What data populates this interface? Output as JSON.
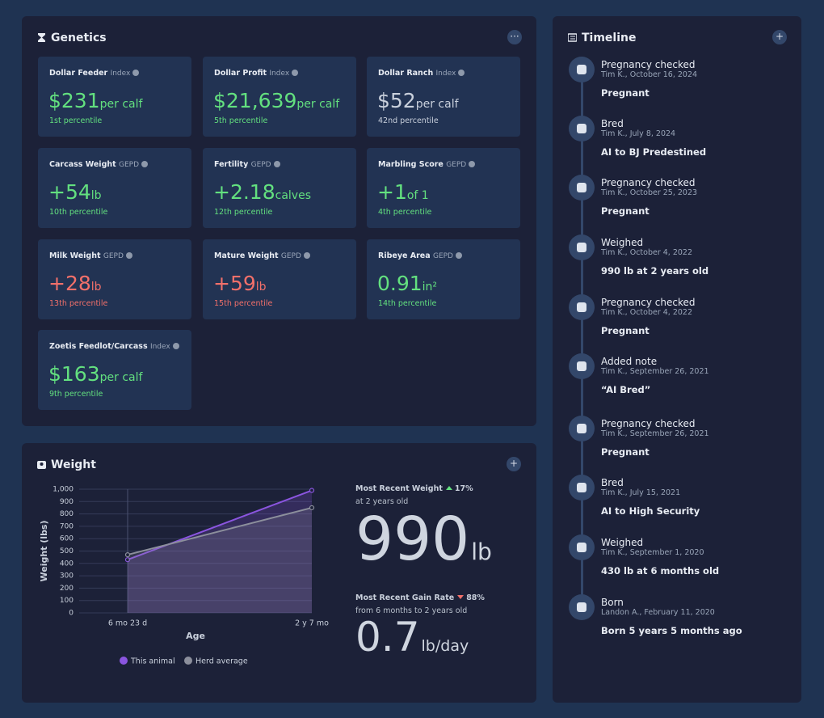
{
  "genetics": {
    "title": "Genetics",
    "cards": [
      {
        "name": "Dollar Feeder",
        "kind": "Index",
        "value": "$231",
        "unit": "per calf",
        "percentile": "1st percentile",
        "color": "#63e07f"
      },
      {
        "name": "Dollar Profit",
        "kind": "Index",
        "value": "$21,639",
        "unit": "per calf",
        "percentile": "5th percentile",
        "color": "#63e07f"
      },
      {
        "name": "Dollar Ranch",
        "kind": "Index",
        "value": "$52",
        "unit": "per calf",
        "percentile": "42nd percentile",
        "color": "#c9d0dc"
      },
      {
        "name": "Carcass Weight",
        "kind": "GEPD",
        "value": "+54",
        "unit": "lb",
        "percentile": "10th percentile",
        "color": "#63e07f"
      },
      {
        "name": "Fertility",
        "kind": "GEPD",
        "value": "+2.18",
        "unit": "calves",
        "percentile": "12th percentile",
        "color": "#63e07f"
      },
      {
        "name": "Marbling Score",
        "kind": "GEPD",
        "value": "+1",
        "unit": "of 1",
        "percentile": "4th percentile",
        "color": "#63e07f"
      },
      {
        "name": "Milk Weight",
        "kind": "GEPD",
        "value": "+28",
        "unit": "lb",
        "percentile": "13th percentile",
        "color": "#f2706a"
      },
      {
        "name": "Mature Weight",
        "kind": "GEPD",
        "value": "+59",
        "unit": "lb",
        "percentile": "15th percentile",
        "color": "#f2706a"
      },
      {
        "name": "Ribeye Area",
        "kind": "GEPD",
        "value": "0.91",
        "unit": "in²",
        "percentile": "14th percentile",
        "color": "#63e07f"
      },
      {
        "name": "Zoetis Feedlot/Carcass",
        "kind": "Index",
        "value": "$163",
        "unit": "per calf",
        "percentile": "9th percentile",
        "color": "#63e07f"
      }
    ]
  },
  "weight": {
    "title": "Weight",
    "recent_weight": {
      "label": "Most Recent Weight",
      "change": "17%",
      "direction": "up",
      "change_color": "#63e07f",
      "sub": "at 2 years old",
      "value": 990,
      "unit": "lb"
    },
    "gain_rate": {
      "label": "Most Recent Gain Rate",
      "change": "88%",
      "direction": "down",
      "change_color": "#f2706a",
      "sub": "from 6 months to 2 years old",
      "value": 0.7,
      "unit": "lb/day"
    }
  },
  "chart_data": {
    "type": "line",
    "ylabel": "Weight (lbs)",
    "xlabel": "Age",
    "categories": [
      "6 mo 23 d",
      "2 y 7 mo"
    ],
    "series": [
      {
        "name": "This animal",
        "color": "#8b55e0",
        "values": [
          430,
          990
        ]
      },
      {
        "name": "Herd average",
        "color": "#8c8f9c",
        "values": [
          470,
          850
        ]
      }
    ],
    "ylim": [
      0,
      1000
    ],
    "yticks": [
      0,
      100,
      200,
      300,
      400,
      500,
      600,
      700,
      800,
      900,
      {
        "value": 1000,
        "label": "1,000"
      }
    ],
    "grid": true,
    "legend": "bottom"
  },
  "timeline": {
    "title": "Timeline",
    "items": [
      {
        "title": "Pregnancy checked",
        "meta": "Tim K., October 16, 2024",
        "detail": "Pregnant"
      },
      {
        "title": "Bred",
        "meta": "Tim K., July 8, 2024",
        "detail": "AI to BJ Predestined"
      },
      {
        "title": "Pregnancy checked",
        "meta": "Tim K., October 25, 2023",
        "detail": "Pregnant"
      },
      {
        "title": "Weighed",
        "meta": "Tim K., October 4, 2022",
        "detail": "990 lb at 2 years old"
      },
      {
        "title": "Pregnancy checked",
        "meta": "Tim K., October 4, 2022",
        "detail": "Pregnant"
      },
      {
        "title": "Added note",
        "meta": "Tim K., September 26, 2021",
        "detail": "“AI Bred”"
      },
      {
        "title": "Pregnancy checked",
        "meta": "Tim K., September 26, 2021",
        "detail": "Pregnant"
      },
      {
        "title": "Bred",
        "meta": "Tim K., July 15, 2021",
        "detail": "AI to High Security"
      },
      {
        "title": "Weighed",
        "meta": "Tim K., September 1, 2020",
        "detail": "430 lb at 6 months old"
      },
      {
        "title": "Born",
        "meta": "Landon A., February 11, 2020",
        "detail": "Born 5 years 5 months ago"
      }
    ]
  }
}
